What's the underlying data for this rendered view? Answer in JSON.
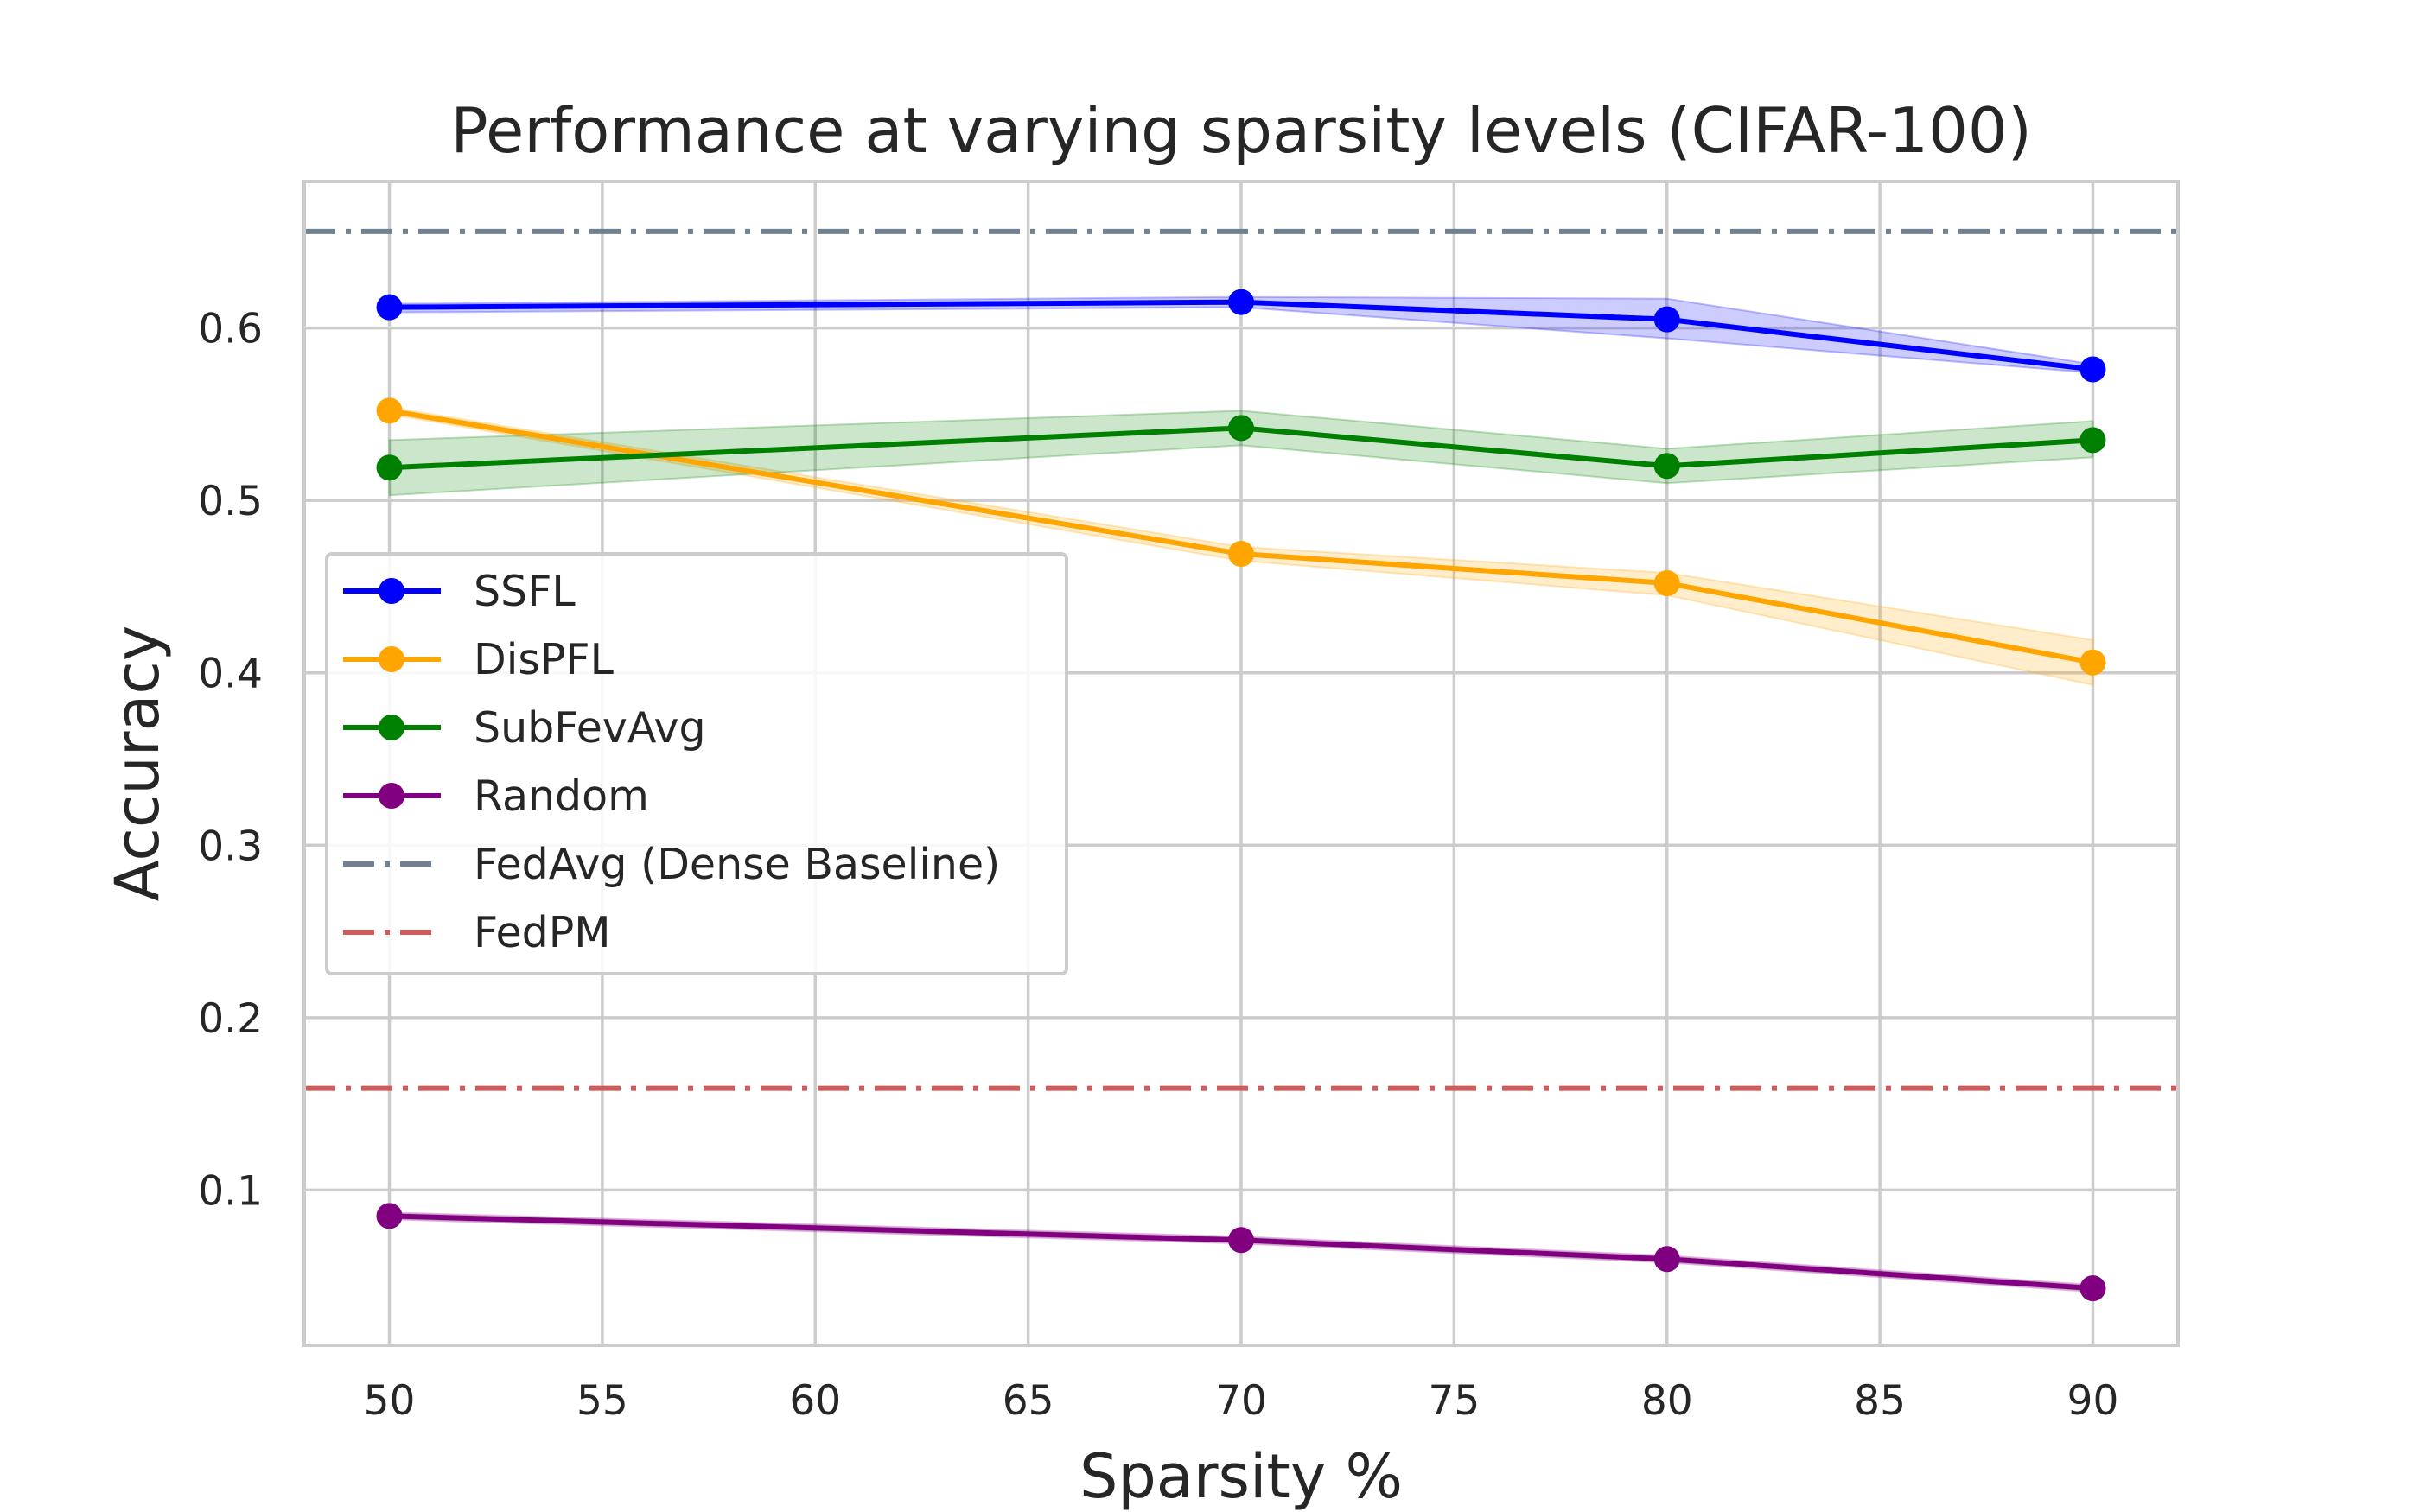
{
  "chart_data": {
    "type": "line",
    "title": "Performance at varying sparsity levels (CIFAR-100)",
    "xlabel": "Sparsity %",
    "ylabel": "Accuracy",
    "xlim": [
      48,
      92
    ],
    "ylim": [
      0.01,
      0.685
    ],
    "xticks": [
      50,
      55,
      60,
      65,
      70,
      75,
      80,
      85,
      90
    ],
    "yticks": [
      0.1,
      0.2,
      0.3,
      0.4,
      0.5,
      0.6
    ],
    "ytick_labels": [
      "0.1",
      "0.2",
      "0.3",
      "0.4",
      "0.5",
      "0.6"
    ],
    "grid": true,
    "legend_position": "center-left",
    "x": [
      50,
      70,
      80,
      90
    ],
    "series": [
      {
        "name": "SSFL",
        "color": "#0000ff",
        "values": [
          0.612,
          0.615,
          0.605,
          0.576
        ],
        "lower": [
          0.609,
          0.612,
          0.594,
          0.574
        ],
        "upper": [
          0.614,
          0.618,
          0.617,
          0.579
        ]
      },
      {
        "name": "DisPFL",
        "color": "#ffa500",
        "values": [
          0.552,
          0.469,
          0.452,
          0.406
        ],
        "lower": [
          0.55,
          0.465,
          0.445,
          0.393
        ],
        "upper": [
          0.554,
          0.473,
          0.458,
          0.419
        ]
      },
      {
        "name": "SubFevAvg",
        "color": "#008000",
        "values": [
          0.519,
          0.542,
          0.52,
          0.535
        ],
        "lower": [
          0.503,
          0.532,
          0.51,
          0.525
        ],
        "upper": [
          0.535,
          0.552,
          0.53,
          0.546
        ]
      },
      {
        "name": "Random",
        "color": "#800080",
        "values": [
          0.085,
          0.071,
          0.06,
          0.043
        ],
        "lower": [
          0.083,
          0.069,
          0.058,
          0.041
        ],
        "upper": [
          0.087,
          0.073,
          0.062,
          0.045
        ]
      }
    ],
    "reference_lines": [
      {
        "name": "FedAvg (Dense Baseline)",
        "color": "#708090",
        "value": 0.656
      },
      {
        "name": "FedPM",
        "color": "#cd5c5c",
        "value": 0.159
      }
    ]
  }
}
